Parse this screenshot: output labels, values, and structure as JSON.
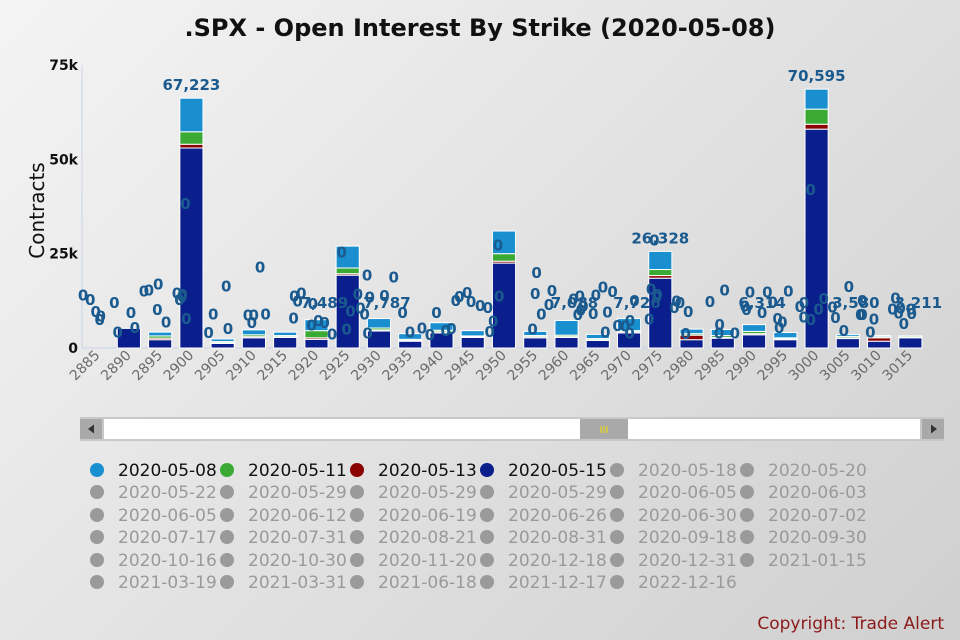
{
  "chart_data": {
    "type": "bar",
    "stacked": true,
    "title": ".SPX - Open Interest By Strike (2020-05-08)",
    "ylabel": "Contracts",
    "ylim": [
      0,
      75000
    ],
    "yticks": [
      "0",
      "25k",
      "50k",
      "75k"
    ],
    "grid": false,
    "categories": [
      "2885",
      "2890",
      "2895",
      "2900",
      "2905",
      "2910",
      "2915",
      "2920",
      "2925",
      "2930",
      "2935",
      "2940",
      "2945",
      "2950",
      "2955",
      "2960",
      "2965",
      "2970",
      "2975",
      "2980",
      "2985",
      "2990",
      "2995",
      "3000",
      "3005",
      "3010",
      "3015"
    ],
    "series": [
      {
        "name": "2020-05-15",
        "color": "#0a1e8c",
        "values": [
          0,
          5200,
          2200,
          53000,
          1200,
          2700,
          2800,
          2300,
          19300,
          4500,
          1800,
          4000,
          2800,
          22500,
          2700,
          2800,
          2000,
          4000,
          18500,
          2200,
          2600,
          3500,
          2200,
          58000,
          2500,
          1800,
          2700
        ]
      },
      {
        "name": "2020-05-13",
        "color": "#8b0000",
        "values": [
          0,
          0,
          400,
          1000,
          200,
          300,
          200,
          400,
          400,
          300,
          200,
          300,
          200,
          500,
          300,
          200,
          200,
          300,
          700,
          1200,
          200,
          300,
          200,
          1300,
          200,
          900,
          200
        ]
      },
      {
        "name": "2020-05-11",
        "color": "#3aaa35",
        "values": [
          0,
          0,
          600,
          3300,
          300,
          500,
          300,
          1900,
          1500,
          500,
          300,
          400,
          200,
          2000,
          300,
          400,
          300,
          300,
          1600,
          400,
          500,
          600,
          300,
          4000,
          400,
          300,
          300
        ]
      },
      {
        "name": "2020-05-08",
        "color": "#1a8fd0",
        "values": [
          0,
          0,
          1000,
          8900,
          700,
          1300,
          900,
          2900,
          5800,
          2500,
          1500,
          2000,
          1400,
          6000,
          1100,
          3900,
          1100,
          3200,
          4800,
          1200,
          1600,
          1800,
          1400,
          5300,
          500,
          300,
          0
        ]
      }
    ],
    "data_labels": [
      {
        "category": "2900",
        "text": "67,223"
      },
      {
        "category": "2920",
        "text": "7,489"
      },
      {
        "category": "2930",
        "text": "7,787"
      },
      {
        "category": "2960",
        "text": "7,088"
      },
      {
        "category": "2970",
        "text": "7,726"
      },
      {
        "category": "2975",
        "text": "26,328"
      },
      {
        "category": "2990",
        "text": "6,314"
      },
      {
        "category": "3000",
        "text": "70,595"
      },
      {
        "category": "3005",
        "text": "3,580"
      },
      {
        "category": "3015",
        "text": "3,211"
      }
    ],
    "zero_label": "0",
    "legend": [
      {
        "label": "2020-05-08",
        "color": "#1a8fd0",
        "active": true
      },
      {
        "label": "2020-05-11",
        "color": "#3aaa35",
        "active": true
      },
      {
        "label": "2020-05-13",
        "color": "#8b0000",
        "active": true
      },
      {
        "label": "2020-05-15",
        "color": "#0a1e8c",
        "active": true
      },
      {
        "label": "2020-05-18",
        "active": false
      },
      {
        "label": "2020-05-20",
        "active": false
      },
      {
        "label": "2020-05-22",
        "active": false
      },
      {
        "label": "2020-05-29",
        "active": false
      },
      {
        "label": "2020-05-29",
        "active": false
      },
      {
        "label": "2020-05-29",
        "active": false
      },
      {
        "label": "2020-06-05",
        "active": false
      },
      {
        "label": "2020-06-03",
        "active": false
      },
      {
        "label": "2020-06-05",
        "active": false
      },
      {
        "label": "2020-06-12",
        "active": false
      },
      {
        "label": "2020-06-19",
        "active": false
      },
      {
        "label": "2020-06-26",
        "active": false
      },
      {
        "label": "2020-06-30",
        "active": false
      },
      {
        "label": "2020-07-02",
        "active": false
      },
      {
        "label": "2020-07-17",
        "active": false
      },
      {
        "label": "2020-07-31",
        "active": false
      },
      {
        "label": "2020-08-21",
        "active": false
      },
      {
        "label": "2020-08-31",
        "active": false
      },
      {
        "label": "2020-09-18",
        "active": false
      },
      {
        "label": "2020-09-30",
        "active": false
      },
      {
        "label": "2020-10-16",
        "active": false
      },
      {
        "label": "2020-10-30",
        "active": false
      },
      {
        "label": "2020-11-20",
        "active": false
      },
      {
        "label": "2020-12-18",
        "active": false
      },
      {
        "label": "2020-12-31",
        "active": false
      },
      {
        "label": "2021-01-15",
        "active": false
      },
      {
        "label": "2021-03-19",
        "active": false
      },
      {
        "label": "2021-03-31",
        "active": false
      },
      {
        "label": "2021-06-18",
        "active": false
      },
      {
        "label": "2021-12-17",
        "active": false
      },
      {
        "label": "2022-12-16",
        "active": false
      }
    ]
  },
  "navigator": {
    "handle_label": "III"
  },
  "footer": {
    "copyright": "Copyright: Trade Alert"
  }
}
